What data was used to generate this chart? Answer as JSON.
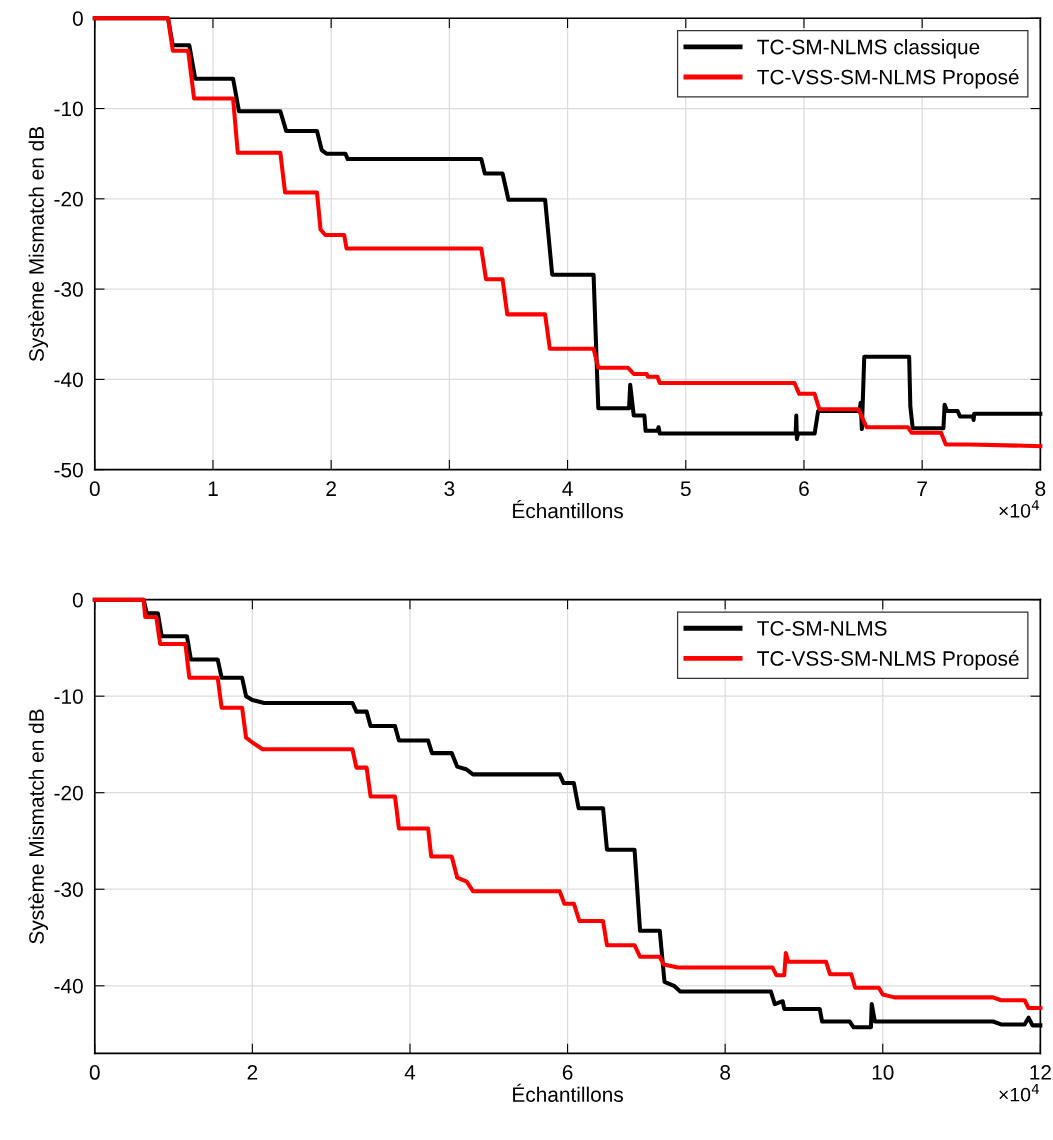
{
  "chart_data": [
    {
      "type": "line",
      "xlabel": "Échantillons",
      "ylabel": "Système Mismatch en dB",
      "annotations": [
        "×10$^{4}$"
      ],
      "xlim": [
        0,
        8
      ],
      "xticks": [
        0,
        1,
        2,
        3,
        4,
        5,
        6,
        7,
        8
      ],
      "ylim": [
        -50,
        0
      ],
      "yticks": [
        -50,
        -40,
        -30,
        -20,
        -10,
        0
      ],
      "grid": true,
      "legend": "top right",
      "line_style": "solid",
      "series": [
        {
          "name": "TC-SM-NLMS classique",
          "color": "#000000",
          "x": [
            0,
            0.62,
            0.66,
            0.8,
            0.85,
            1.17,
            1.22,
            1.57,
            1.62,
            1.88,
            1.92,
            1.96,
            2.12,
            2.14,
            3.27,
            3.3,
            3.45,
            3.5,
            3.81,
            3.87,
            4.22,
            4.26,
            4.52,
            4.53,
            4.56,
            4.65,
            4.66,
            4.76,
            4.77,
            4.78,
            5.93,
            5.935,
            5.94,
            5.95,
            6.09,
            6.12,
            6.47,
            6.48,
            6.49,
            6.51,
            6.89,
            6.9,
            6.92,
            7.18,
            7.19,
            7.21,
            7.3,
            7.32,
            7.43,
            7.435,
            7.44,
            8
          ],
          "values": [
            0,
            0,
            -3.0,
            -3.0,
            -6.7,
            -6.7,
            -10.3,
            -10.3,
            -12.5,
            -12.5,
            -14.6,
            -15.0,
            -15.0,
            -15.6,
            -15.6,
            -17.2,
            -17.2,
            -20.1,
            -20.1,
            -28.4,
            -28.4,
            -43.2,
            -43.2,
            -40.6,
            -44.0,
            -44.0,
            -45.7,
            -45.7,
            -45.3,
            -46.0,
            -46.0,
            -44.0,
            -46.6,
            -46.0,
            -46.0,
            -43.5,
            -43.5,
            -42.6,
            -45.5,
            -37.5,
            -37.5,
            -43.0,
            -45.4,
            -45.4,
            -42.8,
            -43.5,
            -43.5,
            -44.1,
            -44.1,
            -44.5,
            -43.8,
            -43.8
          ]
        },
        {
          "name": "TC-VSS-SM-NLMS Proposé",
          "color": "#ff0000",
          "x": [
            0,
            0.62,
            0.66,
            0.79,
            0.84,
            1.17,
            1.21,
            1.57,
            1.61,
            1.88,
            1.91,
            1.95,
            2.11,
            2.13,
            3.27,
            3.31,
            3.45,
            3.49,
            3.81,
            3.85,
            4.22,
            4.26,
            4.51,
            4.56,
            4.67,
            4.68,
            4.76,
            4.78,
            5.92,
            5.96,
            6.09,
            6.13,
            6.46,
            6.53,
            6.88,
            6.91,
            7.16,
            7.2,
            7.4,
            8
          ],
          "values": [
            0,
            0,
            -3.6,
            -3.6,
            -8.9,
            -8.9,
            -14.9,
            -14.9,
            -19.3,
            -19.3,
            -23.4,
            -24.0,
            -24.0,
            -25.5,
            -25.5,
            -28.9,
            -28.9,
            -32.8,
            -32.8,
            -36.6,
            -36.6,
            -38.7,
            -38.7,
            -39.4,
            -39.4,
            -39.7,
            -39.7,
            -40.4,
            -40.4,
            -41.6,
            -41.6,
            -43.3,
            -43.3,
            -45.3,
            -45.3,
            -45.9,
            -45.9,
            -47.2,
            -47.2,
            -47.4
          ]
        }
      ]
    },
    {
      "type": "line",
      "xlabel": "Échantillons",
      "ylabel": "Système Mismatch en dB",
      "annotations": [
        "×10$^{4}$"
      ],
      "xlim": [
        0,
        12
      ],
      "xticks": [
        0,
        2,
        4,
        6,
        8,
        10,
        12
      ],
      "ylim": [
        -47,
        0
      ],
      "yticks": [
        -40,
        -30,
        -20,
        -10,
        0
      ],
      "grid": true,
      "legend": "top right",
      "line_style": "solid",
      "series": [
        {
          "name": "TC-SM-NLMS",
          "color": "#000000",
          "x": [
            0,
            0.62,
            0.66,
            0.8,
            0.85,
            1.17,
            1.22,
            1.56,
            1.61,
            1.87,
            1.92,
            2.0,
            2.15,
            3.27,
            3.32,
            3.45,
            3.5,
            3.81,
            3.86,
            4.23,
            4.28,
            4.53,
            4.6,
            4.72,
            4.8,
            5.9,
            5.95,
            6.08,
            6.14,
            6.45,
            6.5,
            6.85,
            6.92,
            7.17,
            7.23,
            7.35,
            7.43,
            8.58,
            8.63,
            8.73,
            8.75,
            9.2,
            9.23,
            9.58,
            9.63,
            9.85,
            9.86,
            9.9,
            11.4,
            11.5,
            11.8,
            11.85,
            11.9,
            12
          ],
          "values": [
            0,
            0,
            -1.4,
            -1.4,
            -3.8,
            -3.8,
            -6.2,
            -6.2,
            -8.1,
            -8.1,
            -10.0,
            -10.4,
            -10.7,
            -10.7,
            -11.6,
            -11.6,
            -13.1,
            -13.1,
            -14.6,
            -14.6,
            -15.9,
            -15.9,
            -17.3,
            -17.6,
            -18.1,
            -18.1,
            -19.0,
            -19.0,
            -21.6,
            -21.6,
            -25.9,
            -25.9,
            -34.3,
            -34.3,
            -39.6,
            -40.0,
            -40.6,
            -40.6,
            -41.9,
            -41.6,
            -42.4,
            -42.4,
            -43.7,
            -43.7,
            -44.3,
            -44.3,
            -41.9,
            -43.7,
            -43.7,
            -44.0,
            -44.0,
            -43.3,
            -44.1,
            -44.1
          ]
        },
        {
          "name": "TC-VSS-SM-NLMS Proposé",
          "color": "#ff0000",
          "x": [
            0,
            0.62,
            0.64,
            0.78,
            0.83,
            1.15,
            1.2,
            1.56,
            1.61,
            1.87,
            1.92,
            2.0,
            2.13,
            3.27,
            3.32,
            3.45,
            3.5,
            3.81,
            3.86,
            4.23,
            4.27,
            4.53,
            4.6,
            4.72,
            4.8,
            5.9,
            5.96,
            6.08,
            6.15,
            6.45,
            6.5,
            6.85,
            6.92,
            7.17,
            7.22,
            7.4,
            8.6,
            8.65,
            8.75,
            8.77,
            8.8,
            9.28,
            9.33,
            9.6,
            9.65,
            9.95,
            10.0,
            10.15,
            11.4,
            11.5,
            11.8,
            11.85,
            12
          ],
          "values": [
            0,
            0,
            -1.8,
            -1.8,
            -4.6,
            -4.6,
            -8.1,
            -8.1,
            -11.2,
            -11.2,
            -14.3,
            -14.8,
            -15.5,
            -15.5,
            -17.4,
            -17.4,
            -20.4,
            -20.4,
            -23.7,
            -23.7,
            -26.6,
            -26.6,
            -28.8,
            -29.2,
            -30.2,
            -30.2,
            -31.5,
            -31.5,
            -33.3,
            -33.3,
            -35.8,
            -35.8,
            -37.0,
            -37.0,
            -37.8,
            -38.1,
            -38.1,
            -38.9,
            -38.9,
            -36.6,
            -37.5,
            -37.5,
            -38.8,
            -38.8,
            -40.2,
            -40.2,
            -40.9,
            -41.2,
            -41.2,
            -41.5,
            -41.5,
            -42.3,
            -42.3
          ]
        }
      ]
    }
  ]
}
